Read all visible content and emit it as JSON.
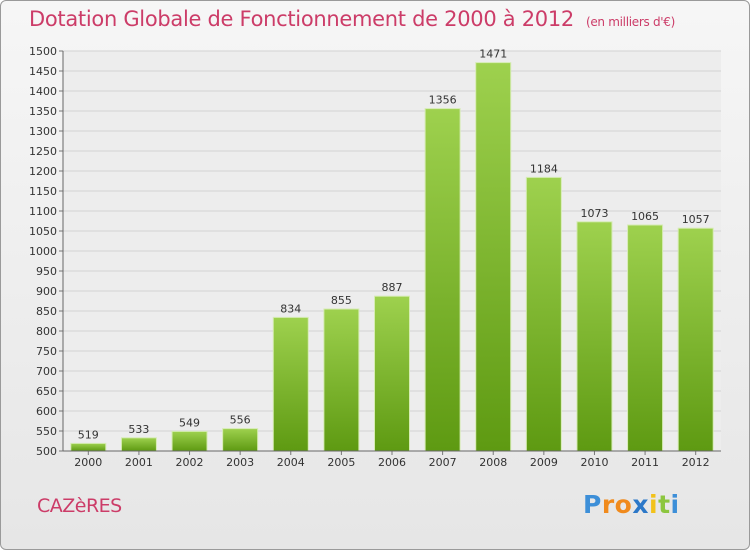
{
  "chart_data": {
    "type": "bar",
    "title": "Dotation Globale de Fonctionnement de 2000 à 2012",
    "unit_note": "(en milliers d'€)",
    "categories": [
      "2000",
      "2001",
      "2002",
      "2003",
      "2004",
      "2005",
      "2006",
      "2007",
      "2008",
      "2009",
      "2010",
      "2011",
      "2012"
    ],
    "values": [
      519,
      533,
      549,
      556,
      834,
      855,
      887,
      1356,
      1471,
      1184,
      1073,
      1065,
      1057
    ],
    "ylim": [
      500,
      1500
    ],
    "yticks": [
      500,
      550,
      600,
      650,
      700,
      750,
      800,
      850,
      900,
      950,
      1000,
      1050,
      1100,
      1150,
      1200,
      1250,
      1300,
      1350,
      1400,
      1450,
      1500
    ],
    "grid": true,
    "bar_color_top": "#9ed14e",
    "bar_color_bottom": "#5e9a12"
  },
  "commune": "CAZèRES",
  "logo": {
    "letters": [
      "P",
      "r",
      "o",
      "x",
      "i",
      "t",
      "i"
    ],
    "colors": [
      "#3d8fd8",
      "#f08a1c",
      "#f08a1c",
      "#2c78c8",
      "#f2c21a",
      "#8cc63f",
      "#3d8fd8"
    ]
  }
}
